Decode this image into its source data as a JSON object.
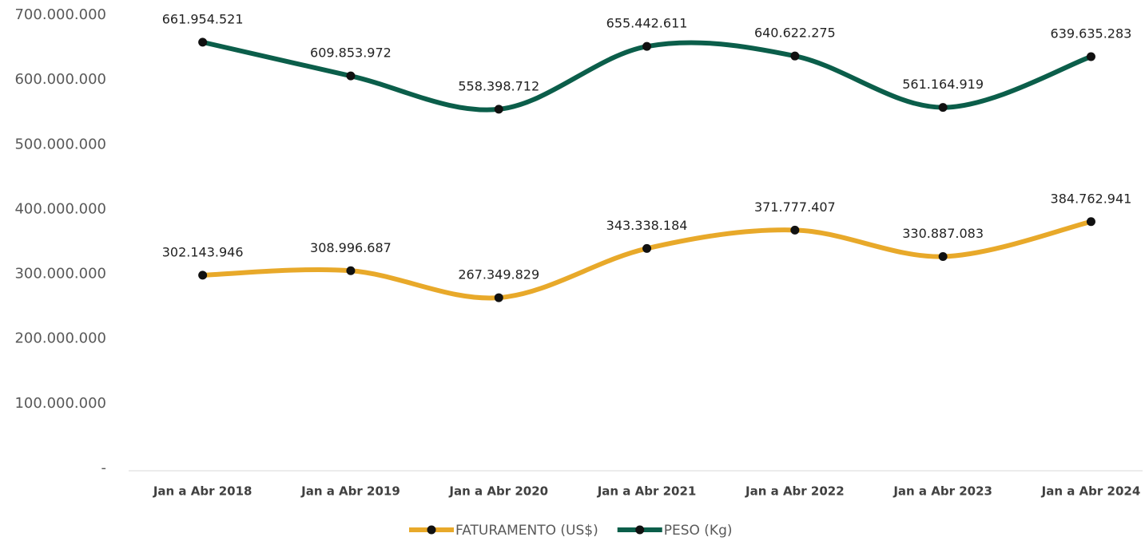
{
  "chart_data": {
    "type": "line",
    "categories": [
      "Jan a Abr 2018",
      "Jan a Abr 2019",
      "Jan a Abr 2020",
      "Jan a Abr 2021",
      "Jan a Abr 2022",
      "Jan a Abr 2023",
      "Jan a Abr 2024"
    ],
    "series": [
      {
        "name": "FATURAMENTO (US$)",
        "color": "#E8A92A",
        "values": [
          302143946,
          308996687,
          267349829,
          343338184,
          371777407,
          330887083,
          384762941
        ],
        "value_labels": [
          "302.143.946",
          "308.996.687",
          "267.349.829",
          "343.338.184",
          "371.777.407",
          "330.887.083",
          "384.762.941"
        ]
      },
      {
        "name": "PESO (Kg)",
        "color": "#0B5E4A",
        "values": [
          661954521,
          609853972,
          558398712,
          655442611,
          640622275,
          561164919,
          639635283
        ],
        "value_labels": [
          "661.954.521",
          "609.853.972",
          "558.398.712",
          "655.442.611",
          "640.622.275",
          "561.164.919",
          "639.635.283"
        ]
      }
    ],
    "ylim": [
      0,
      700000000
    ],
    "yticks": [
      {
        "value": 0,
        "label": "-"
      },
      {
        "value": 100000000,
        "label": "100.000.000"
      },
      {
        "value": 200000000,
        "label": "200.000.000"
      },
      {
        "value": 300000000,
        "label": "300.000.000"
      },
      {
        "value": 400000000,
        "label": "400.000.000"
      },
      {
        "value": 500000000,
        "label": "500.000.000"
      },
      {
        "value": 600000000,
        "label": "600.000.000"
      },
      {
        "value": 700000000,
        "label": "700.000.000"
      }
    ],
    "grid": false,
    "legend": "bottom",
    "smooth": true
  }
}
